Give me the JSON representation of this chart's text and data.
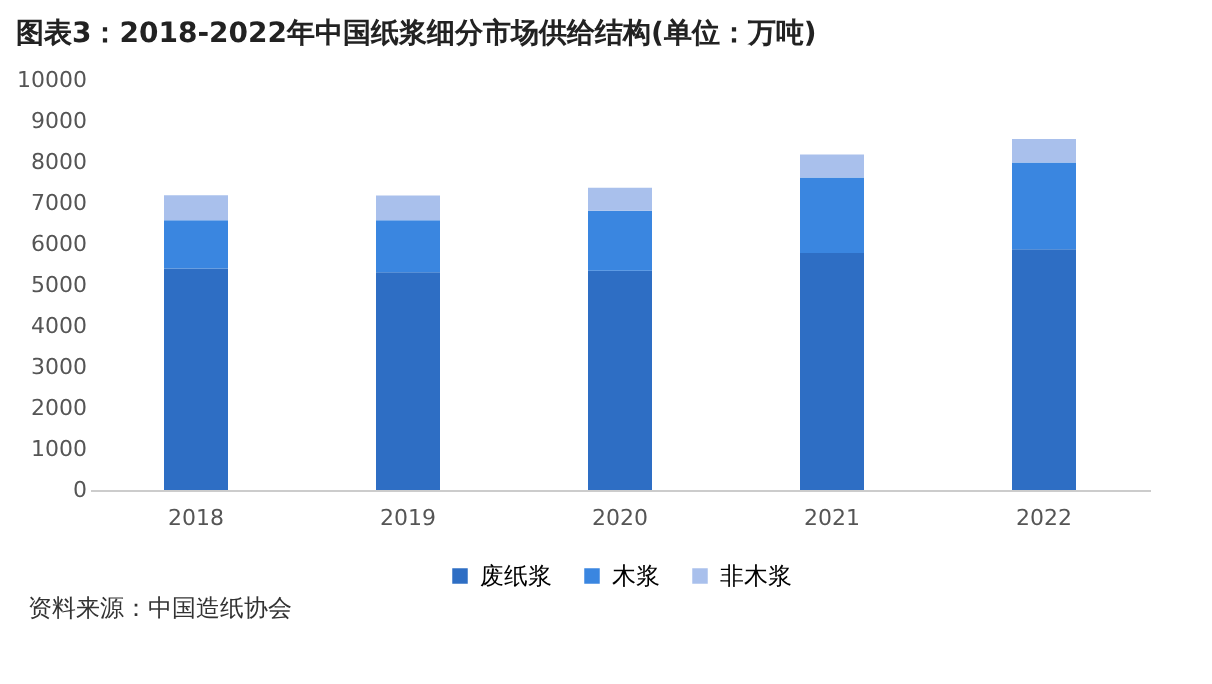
{
  "chart_data": {
    "type": "bar",
    "stacked": true,
    "title": "图表3：2018-2022年中国纸浆细分市场供给结构(单位：万吨)",
    "categories": [
      "2018",
      "2019",
      "2020",
      "2021",
      "2022"
    ],
    "series": [
      {
        "name": "废纸浆",
        "color": "#2e6ec4",
        "values": [
          5400,
          5310,
          5350,
          5780,
          5870
        ]
      },
      {
        "name": "木浆",
        "color": "#3a86e0",
        "values": [
          1180,
          1270,
          1460,
          1840,
          2120
        ]
      },
      {
        "name": "非木浆",
        "color": "#a9c0ec",
        "values": [
          610,
          600,
          560,
          560,
          570
        ]
      }
    ],
    "ylim": [
      0,
      10000
    ],
    "yticks": [
      0,
      1000,
      2000,
      3000,
      4000,
      5000,
      6000,
      7000,
      8000,
      9000,
      10000
    ],
    "grid": false,
    "legend": "bottom",
    "annotations": [
      "资料来源：中国造纸协会"
    ]
  }
}
